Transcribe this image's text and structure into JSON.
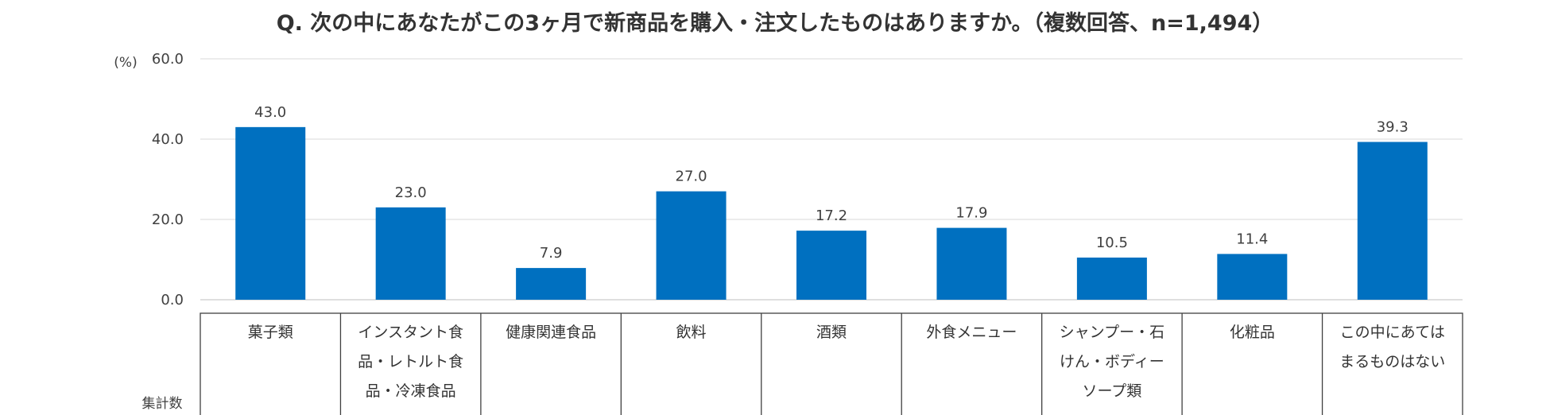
{
  "chart_data": {
    "type": "bar",
    "title": "Q. 次の中にあなたがこの3ヶ月で新商品を購入・注文したものはありますか。（複数回答、n=1,494）",
    "unit": "(%)",
    "ylim": [
      0,
      60
    ],
    "yticks": [
      "0.0",
      "20.0",
      "40.0",
      "60.0"
    ],
    "grid": true,
    "bar_color": "#0070C0",
    "table_row_header": "集計数",
    "categories": [
      [
        "菓子類"
      ],
      [
        "インスタント食",
        "品・レトルト食",
        "品・冷凍食品"
      ],
      [
        "健康関連食品"
      ],
      [
        "飲料"
      ],
      [
        "酒類"
      ],
      [
        "外食メニュー"
      ],
      [
        "シャンプー・石",
        "けん・ボディー",
        "ソープ類"
      ],
      [
        "化粧品"
      ],
      [
        "この中にあては",
        "まるものはない"
      ]
    ],
    "values": [
      43.0,
      23.0,
      7.9,
      27.0,
      17.2,
      17.9,
      10.5,
      11.4,
      39.3
    ],
    "value_labels": [
      "43.0",
      "23.0",
      "7.9",
      "27.0",
      "17.2",
      "17.9",
      "10.5",
      "11.4",
      "39.3"
    ]
  }
}
